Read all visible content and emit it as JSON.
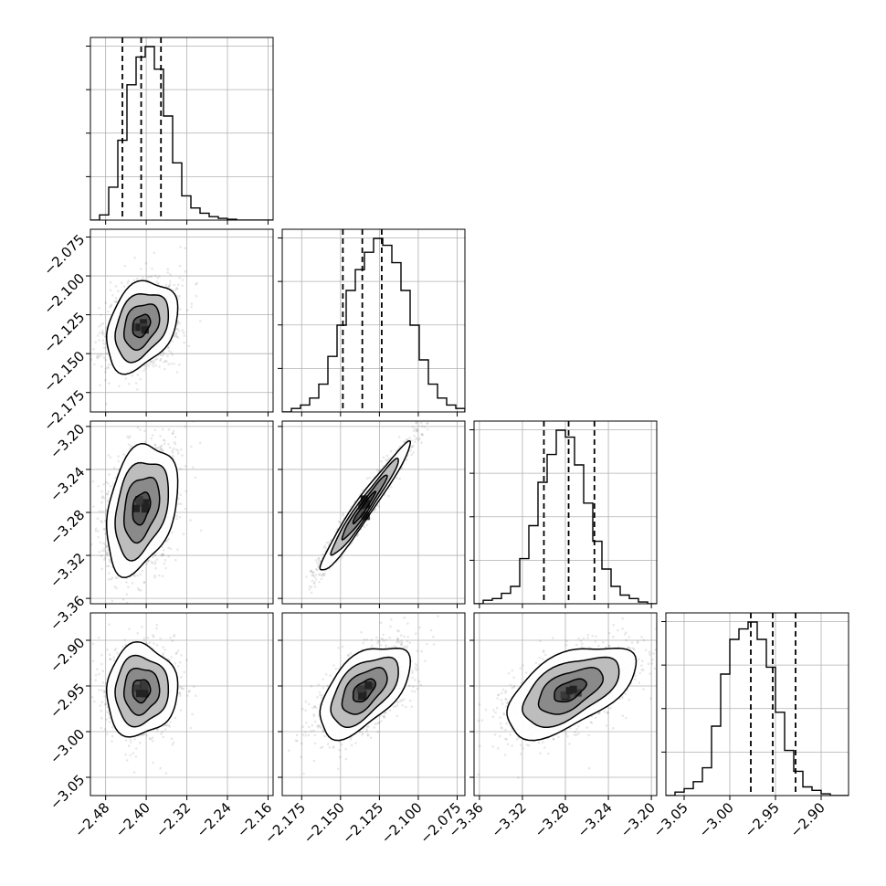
{
  "chart_data": {
    "type": "corner",
    "grid": true,
    "colors": {
      "line": "#000000",
      "grid": "#b0b0b0",
      "scatter": "#000000",
      "background": "#ffffff"
    },
    "params": [
      {
        "range": [
          -2.51,
          -2.15
        ],
        "ticks": [
          -2.48,
          -2.4,
          -2.32,
          -2.24,
          -2.16
        ],
        "tick_labels": [
          "−2.48",
          "−2.40",
          "−2.32",
          "−2.24",
          "−2.16"
        ],
        "quantiles": [
          -2.447,
          -2.41,
          -2.371
        ],
        "hist": [
          0,
          0.03,
          0.19,
          0.46,
          0.78,
          0.94,
          1.0,
          0.87,
          0.6,
          0.33,
          0.14,
          0.07,
          0.04,
          0.02,
          0.01,
          0.005,
          0,
          0,
          0,
          0
        ],
        "hist_ticks": 4
      },
      {
        "range": [
          -2.1875,
          -2.07
        ],
        "ticks": [
          -2.175,
          -2.15,
          -2.125,
          -2.1,
          -2.075
        ],
        "tick_labels": [
          "−2.175",
          "−2.150",
          "−2.125",
          "−2.100",
          "−2.075"
        ],
        "quantiles": [
          -2.1485,
          -2.136,
          -2.1235
        ],
        "hist": [
          0,
          0.02,
          0.04,
          0.08,
          0.16,
          0.32,
          0.5,
          0.7,
          0.82,
          0.92,
          1.0,
          0.96,
          0.86,
          0.7,
          0.5,
          0.3,
          0.16,
          0.08,
          0.04,
          0.02
        ],
        "hist_ticks": 4
      },
      {
        "range": [
          -3.365,
          -3.195
        ],
        "ticks": [
          -3.36,
          -3.32,
          -3.28,
          -3.24,
          -3.2
        ],
        "tick_labels": [
          "−3.36",
          "−3.32",
          "−3.28",
          "−3.24",
          "−3.20"
        ],
        "quantiles": [
          -3.3,
          -3.277,
          -3.253
        ],
        "hist": [
          0,
          0.02,
          0.03,
          0.06,
          0.1,
          0.26,
          0.45,
          0.7,
          0.86,
          1.0,
          0.96,
          0.8,
          0.58,
          0.36,
          0.2,
          0.1,
          0.05,
          0.03,
          0.01,
          0
        ],
        "hist_ticks": 4
      },
      {
        "range": [
          -3.07,
          -2.87
        ],
        "ticks": [
          -3.05,
          -3.0,
          -2.95,
          -2.9
        ],
        "tick_labels": [
          "−3.05",
          "−3.00",
          "−2.95",
          "−2.90"
        ],
        "quantiles": [
          -2.977,
          -2.953,
          -2.928
        ],
        "hist": [
          0,
          0.02,
          0.04,
          0.08,
          0.16,
          0.4,
          0.7,
          0.9,
          0.96,
          1.0,
          0.9,
          0.74,
          0.48,
          0.26,
          0.14,
          0.05,
          0.03,
          0.01,
          0,
          0
        ],
        "hist_ticks": 4
      }
    ],
    "pairs": [
      {
        "x": 0,
        "y": 1,
        "mean": [
          -2.41,
          -2.132
        ],
        "sd": [
          0.035,
          0.0145
        ],
        "rho": 0.32
      },
      {
        "x": 0,
        "y": 2,
        "mean": [
          -2.41,
          -3.276
        ],
        "sd": [
          0.035,
          0.03
        ],
        "rho": 0.32
      },
      {
        "x": 1,
        "y": 2,
        "mean": [
          -2.135,
          -3.276
        ],
        "sd": [
          0.0145,
          0.03
        ],
        "rho": 0.97
      },
      {
        "x": 0,
        "y": 3,
        "mean": [
          -2.41,
          -2.955
        ],
        "sd": [
          0.035,
          0.025
        ],
        "rho": 0.05
      },
      {
        "x": 1,
        "y": 3,
        "mean": [
          -2.135,
          -2.955
        ],
        "sd": [
          0.0145,
          0.025
        ],
        "rho": 0.55
      },
      {
        "x": 2,
        "y": 3,
        "mean": [
          -3.276,
          -2.955
        ],
        "sd": [
          0.03,
          0.025
        ],
        "rho": 0.55
      }
    ],
    "contour_levels_sigma": [
      0.5,
      1.0,
      1.5,
      2.0
    ]
  }
}
